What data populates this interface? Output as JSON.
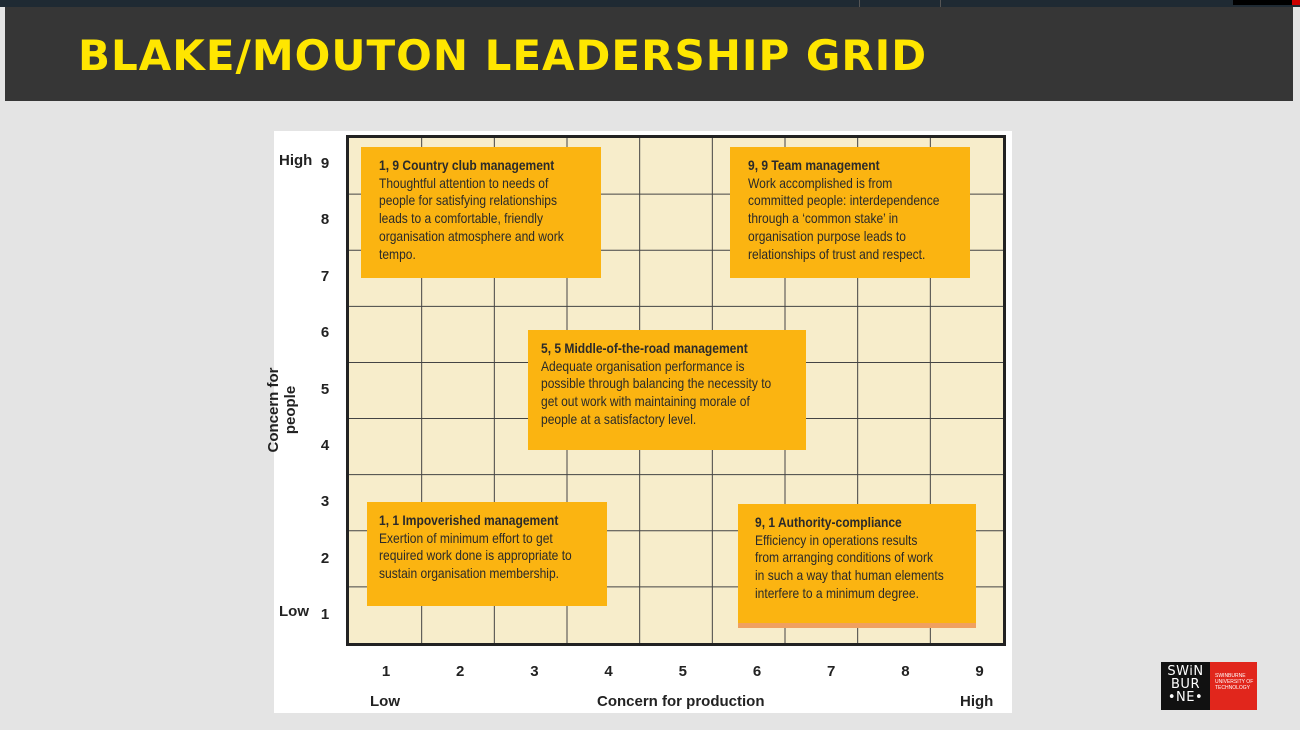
{
  "slide": {
    "title": "BLAKE/MOUTON LEADERSHIP GRID"
  },
  "diagram": {
    "y_axis": {
      "title": "Concern for people",
      "low_label": "Low",
      "high_label": "High",
      "ticks": [
        "1",
        "2",
        "3",
        "4",
        "5",
        "6",
        "7",
        "8",
        "9"
      ]
    },
    "x_axis": {
      "title": "Concern for production",
      "low_label": "Low",
      "high_label": "High",
      "ticks": [
        "1",
        "2",
        "3",
        "4",
        "5",
        "6",
        "7",
        "8",
        "9"
      ]
    },
    "styles": [
      {
        "title": "1, 9 Country club management",
        "lines": [
          "Thoughtful attention to needs of",
          "people for satisfying relationships",
          "leads to a comfortable, friendly",
          "organisation atmosphere and work",
          "tempo."
        ]
      },
      {
        "title": "9, 9 Team management",
        "lines": [
          "Work accomplished is from",
          "committed people: interdependence",
          "through a ‘common stake’ in",
          "organisation purpose leads to",
          "relationships of trust and respect."
        ]
      },
      {
        "title": "5, 5 Middle-of-the-road management",
        "lines": [
          "Adequate organisation performance is",
          "possible through balancing the necessity to",
          "get out work with maintaining morale of",
          "people at a satisfactory level."
        ]
      },
      {
        "title": "1, 1 Impoverished management",
        "lines": [
          "Exertion of minimum effort to get",
          "required work done is appropriate to",
          "sustain organisation membership."
        ]
      },
      {
        "title": "9, 1 Authority-compliance",
        "lines": [
          "Efficiency in operations results",
          "from arranging conditions of work",
          "in such a way that human elements",
          "interfere to a minimum degree."
        ]
      }
    ],
    "colors": {
      "card": "#fbb411",
      "grid_background": "#f7edcb",
      "title_text": "#ffe600"
    }
  },
  "logo": {
    "black_lines": [
      "SWiN",
      "BUR",
      "•NE•"
    ],
    "red_lines": [
      "SWINBURNE",
      "UNIVERSITY OF",
      "TECHNOLOGY"
    ]
  }
}
